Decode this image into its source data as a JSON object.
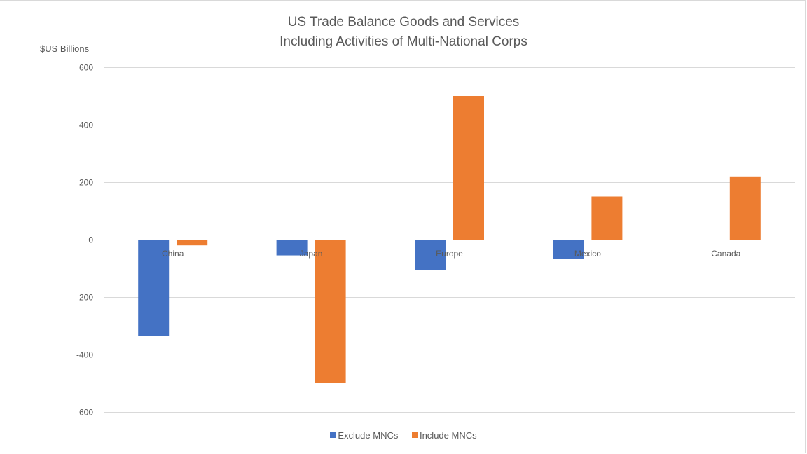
{
  "chart_data": {
    "type": "bar",
    "title": "US Trade Balance Goods and Services",
    "subtitle": "Including Activities of Multi-National Corps",
    "ylabel": "$US Billions",
    "xlabel": "",
    "ylim": [
      -600,
      600
    ],
    "yticks": [
      600,
      400,
      200,
      0,
      -200,
      -400,
      -600
    ],
    "grid": true,
    "legend_position": "bottom",
    "categories": [
      "China",
      "Japan",
      "Europe",
      "Mexico",
      "Canada"
    ],
    "series": [
      {
        "name": "Exclude MNCs",
        "color": "#4472c4",
        "values": [
          -335,
          -55,
          -105,
          -68,
          0
        ]
      },
      {
        "name": "Include MNCs",
        "color": "#ed7d31",
        "values": [
          -20,
          -500,
          500,
          150,
          220
        ]
      }
    ]
  }
}
